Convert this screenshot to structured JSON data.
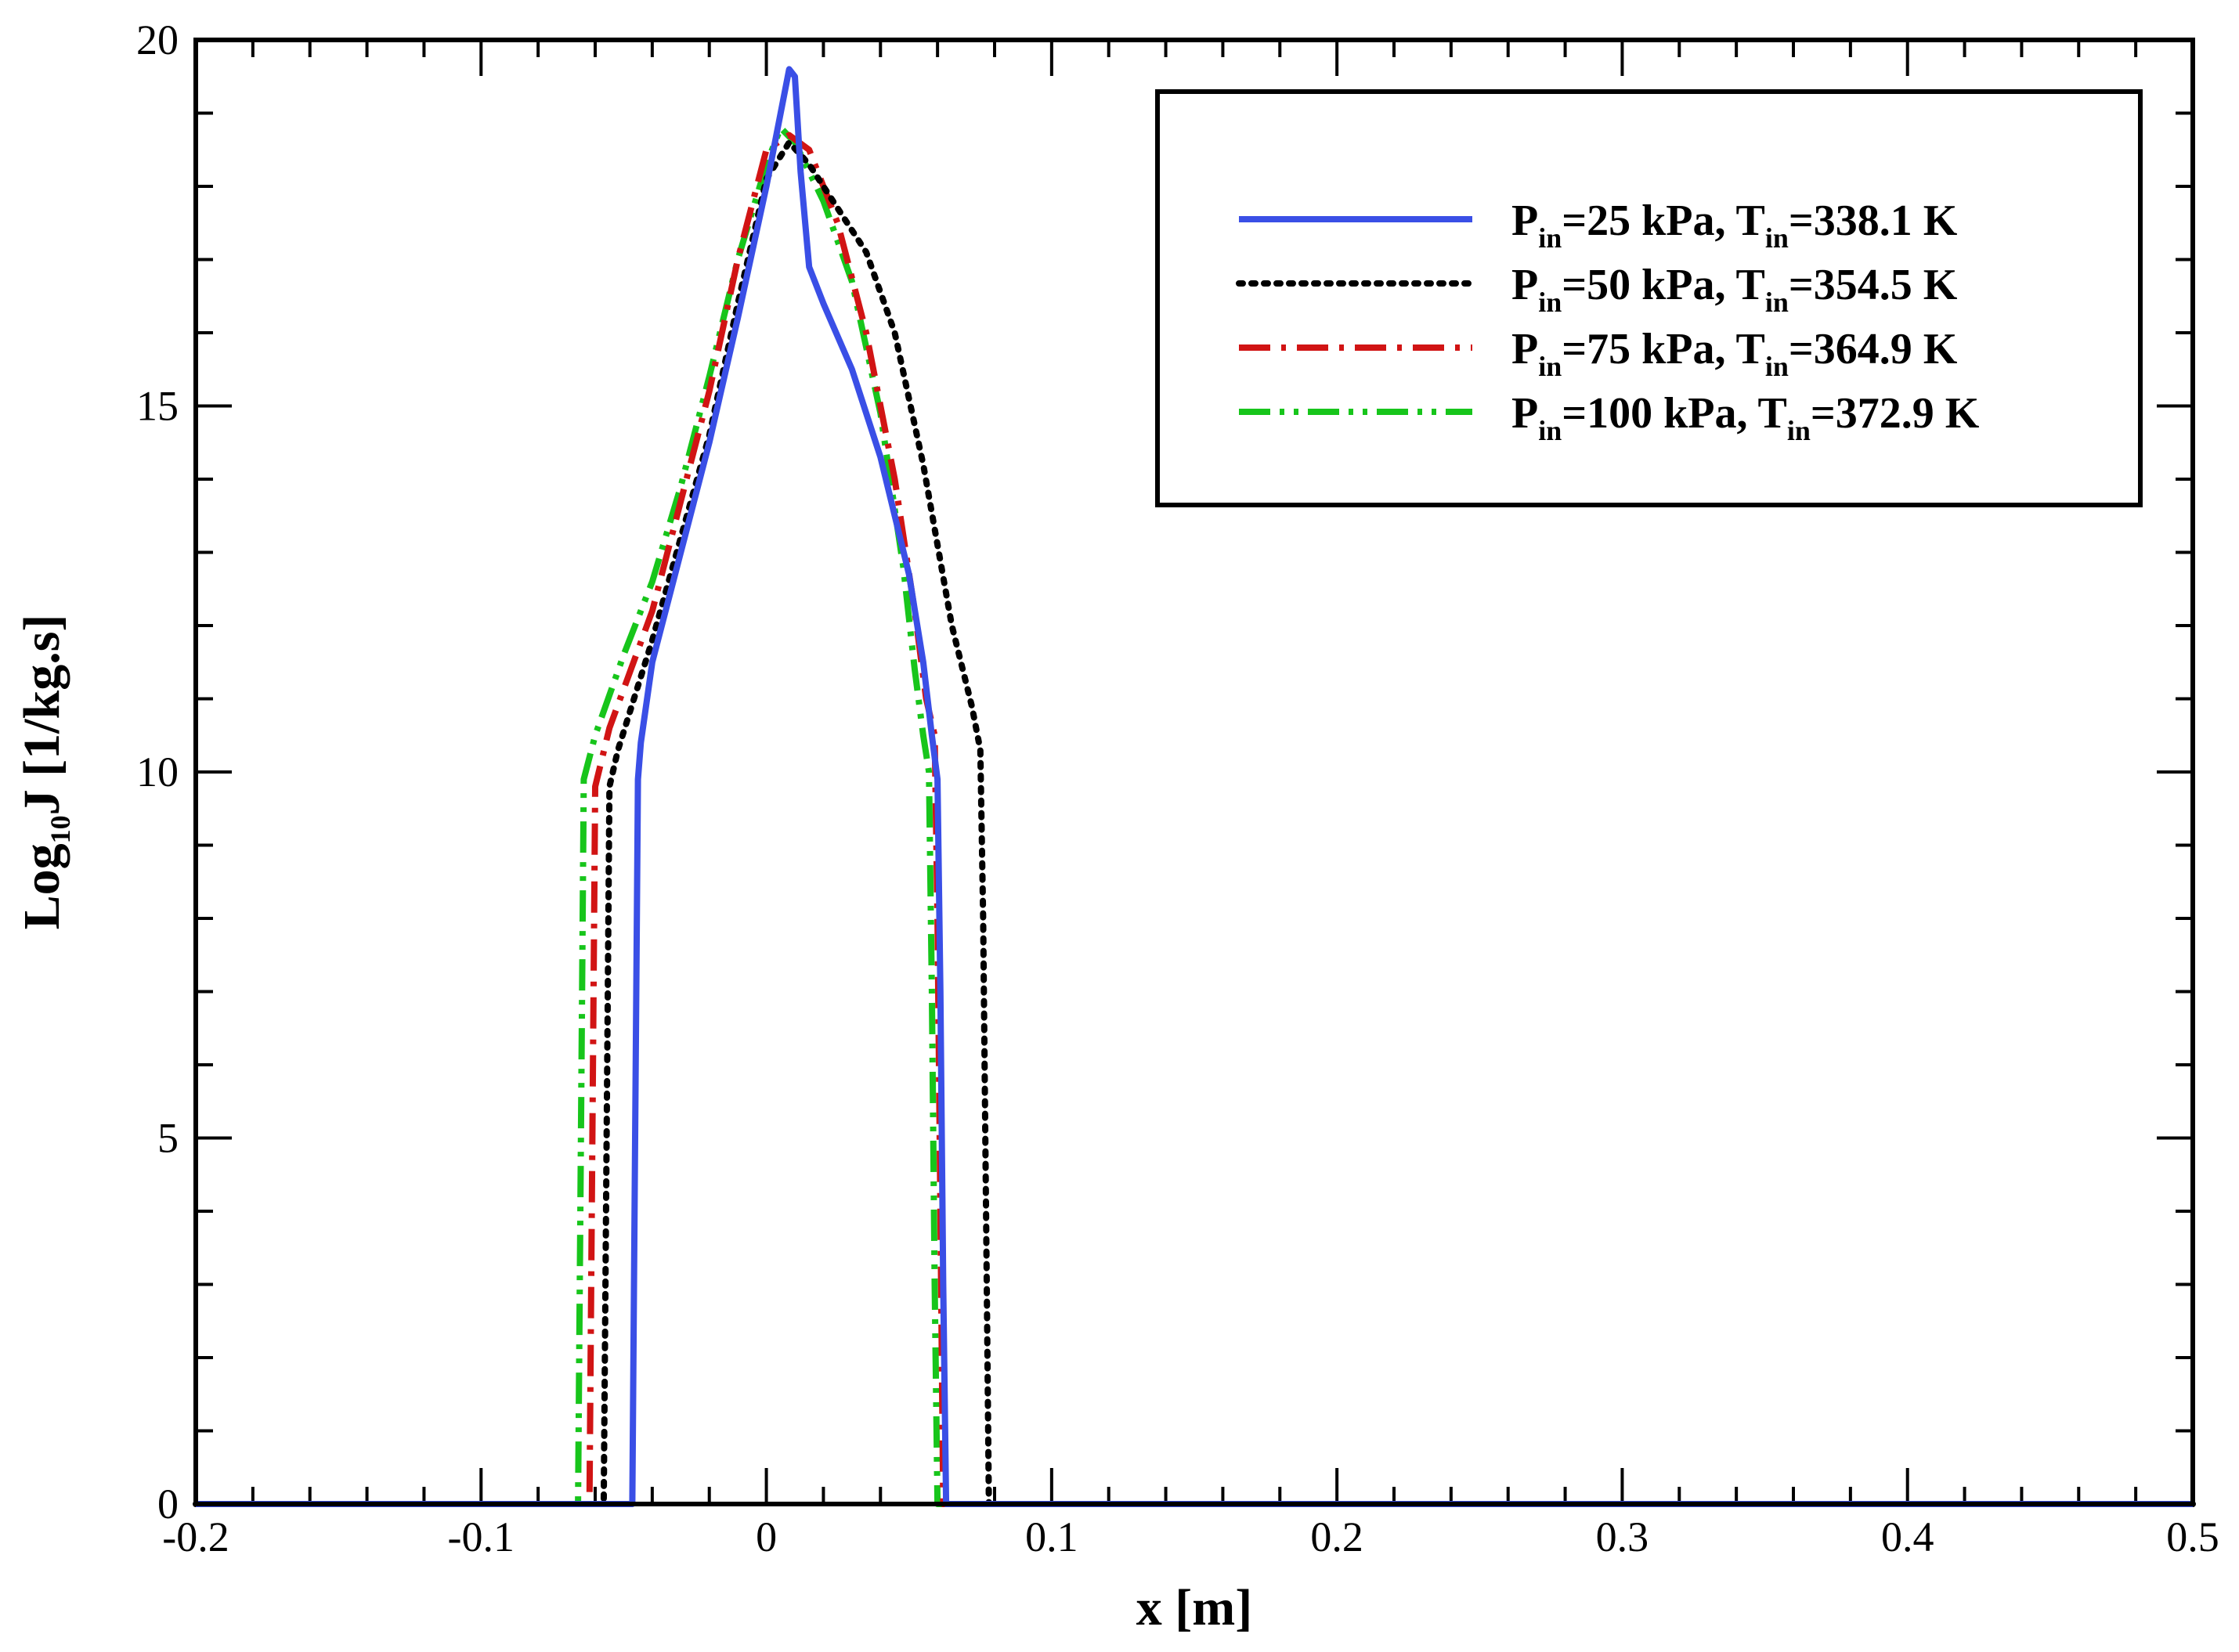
{
  "chart_data": {
    "type": "line",
    "xlabel": "x [m]",
    "ylabel": {
      "main": "Log",
      "sub": "10",
      "tail": "J [1/kg.s]"
    },
    "xlim": [
      -0.2,
      0.5
    ],
    "ylim": [
      0,
      20
    ],
    "xticks": [
      -0.2,
      -0.1,
      0,
      0.1,
      0.2,
      0.3,
      0.4,
      0.5
    ],
    "xtick_labels": [
      "-0.2",
      "-0.1",
      "0",
      "0.1",
      "0.2",
      "0.3",
      "0.4",
      "0.5"
    ],
    "yticks": [
      0,
      5,
      10,
      15,
      20
    ],
    "ytick_labels": [
      "0",
      "5",
      "10",
      "15",
      "20"
    ],
    "grid": false,
    "legend_position": "top-right",
    "series": [
      {
        "name": "Pin=25 kPa, Tin=338.1 K",
        "legend": {
          "P": "P",
          "Psub": "in",
          "mid": "=25 kPa, T",
          "Tsub": "in",
          "end": "=338.1 K"
        },
        "color": "#3a4fe6",
        "style": "solid",
        "x": [
          -0.2,
          -0.047,
          -0.046,
          -0.045,
          -0.044,
          -0.04,
          -0.03,
          -0.02,
          -0.01,
          0.0,
          0.005,
          0.008,
          0.01,
          0.012,
          0.015,
          0.02,
          0.03,
          0.04,
          0.05,
          0.055,
          0.058,
          0.06,
          0.061,
          0.062,
          0.063,
          0.5
        ],
        "y": [
          0,
          0,
          5,
          9.9,
          10.4,
          11.5,
          13.0,
          14.5,
          16.2,
          18.0,
          19.0,
          19.6,
          19.5,
          18.2,
          16.9,
          16.4,
          15.5,
          14.3,
          12.7,
          11.5,
          10.5,
          9.9,
          7.0,
          3.0,
          0,
          0
        ]
      },
      {
        "name": "Pin=50 kPa, Tin=354.5 K",
        "legend": {
          "P": "P",
          "Psub": "in",
          "mid": "=50 kPa, T",
          "Tsub": "in",
          "end": "=354.5 K"
        },
        "color": "#000000",
        "style": "dotted",
        "x": [
          -0.2,
          -0.057,
          -0.056,
          -0.055,
          -0.052,
          -0.04,
          -0.03,
          -0.02,
          -0.01,
          0.0,
          0.008,
          0.015,
          0.025,
          0.035,
          0.045,
          0.055,
          0.065,
          0.072,
          0.075,
          0.076,
          0.077,
          0.078,
          0.5
        ],
        "y": [
          0,
          0,
          5,
          9.8,
          10.3,
          11.8,
          13.2,
          14.6,
          16.4,
          18.1,
          18.6,
          18.3,
          17.7,
          17.1,
          16.0,
          14.2,
          12.0,
          10.9,
          10.3,
          8.0,
          4.0,
          0,
          0
        ]
      },
      {
        "name": "Pin=75 kPa, Tin=364.9 K",
        "legend": {
          "P": "P",
          "Psub": "in",
          "mid": "=75 kPa, T",
          "Tsub": "in",
          "end": "=364.9 K"
        },
        "color": "#d11414",
        "style": "dashdot",
        "x": [
          -0.2,
          -0.062,
          -0.061,
          -0.06,
          -0.055,
          -0.04,
          -0.03,
          -0.02,
          -0.01,
          0.0,
          0.008,
          0.015,
          0.025,
          0.035,
          0.045,
          0.052,
          0.056,
          0.059,
          0.06,
          0.061,
          0.062,
          0.5
        ],
        "y": [
          0,
          0,
          5,
          9.8,
          10.6,
          12.2,
          13.7,
          15.2,
          17.0,
          18.5,
          18.7,
          18.5,
          17.5,
          16.0,
          14.0,
          12.2,
          11.0,
          10.5,
          8.0,
          4.0,
          0,
          0
        ]
      },
      {
        "name": "Pin=100 kPa, Tin=372.9 K",
        "legend": {
          "P": "P",
          "Psub": "in",
          "mid": "=100 kPa, T",
          "Tsub": "in",
          "end": "=372.9 K"
        },
        "color": "#17c51b",
        "style": "dashdotdot",
        "x": [
          -0.2,
          -0.066,
          -0.065,
          -0.064,
          -0.06,
          -0.05,
          -0.04,
          -0.03,
          -0.02,
          -0.01,
          0.0,
          0.005,
          0.01,
          0.02,
          0.03,
          0.04,
          0.048,
          0.052,
          0.055,
          0.057,
          0.058,
          0.059,
          0.06,
          0.5
        ],
        "y": [
          0,
          0,
          5,
          9.9,
          10.5,
          11.6,
          12.6,
          13.9,
          15.4,
          17.0,
          18.3,
          18.8,
          18.6,
          17.8,
          16.7,
          14.9,
          12.8,
          11.4,
          10.5,
          10.0,
          7.0,
          3.0,
          0,
          0
        ]
      }
    ]
  }
}
